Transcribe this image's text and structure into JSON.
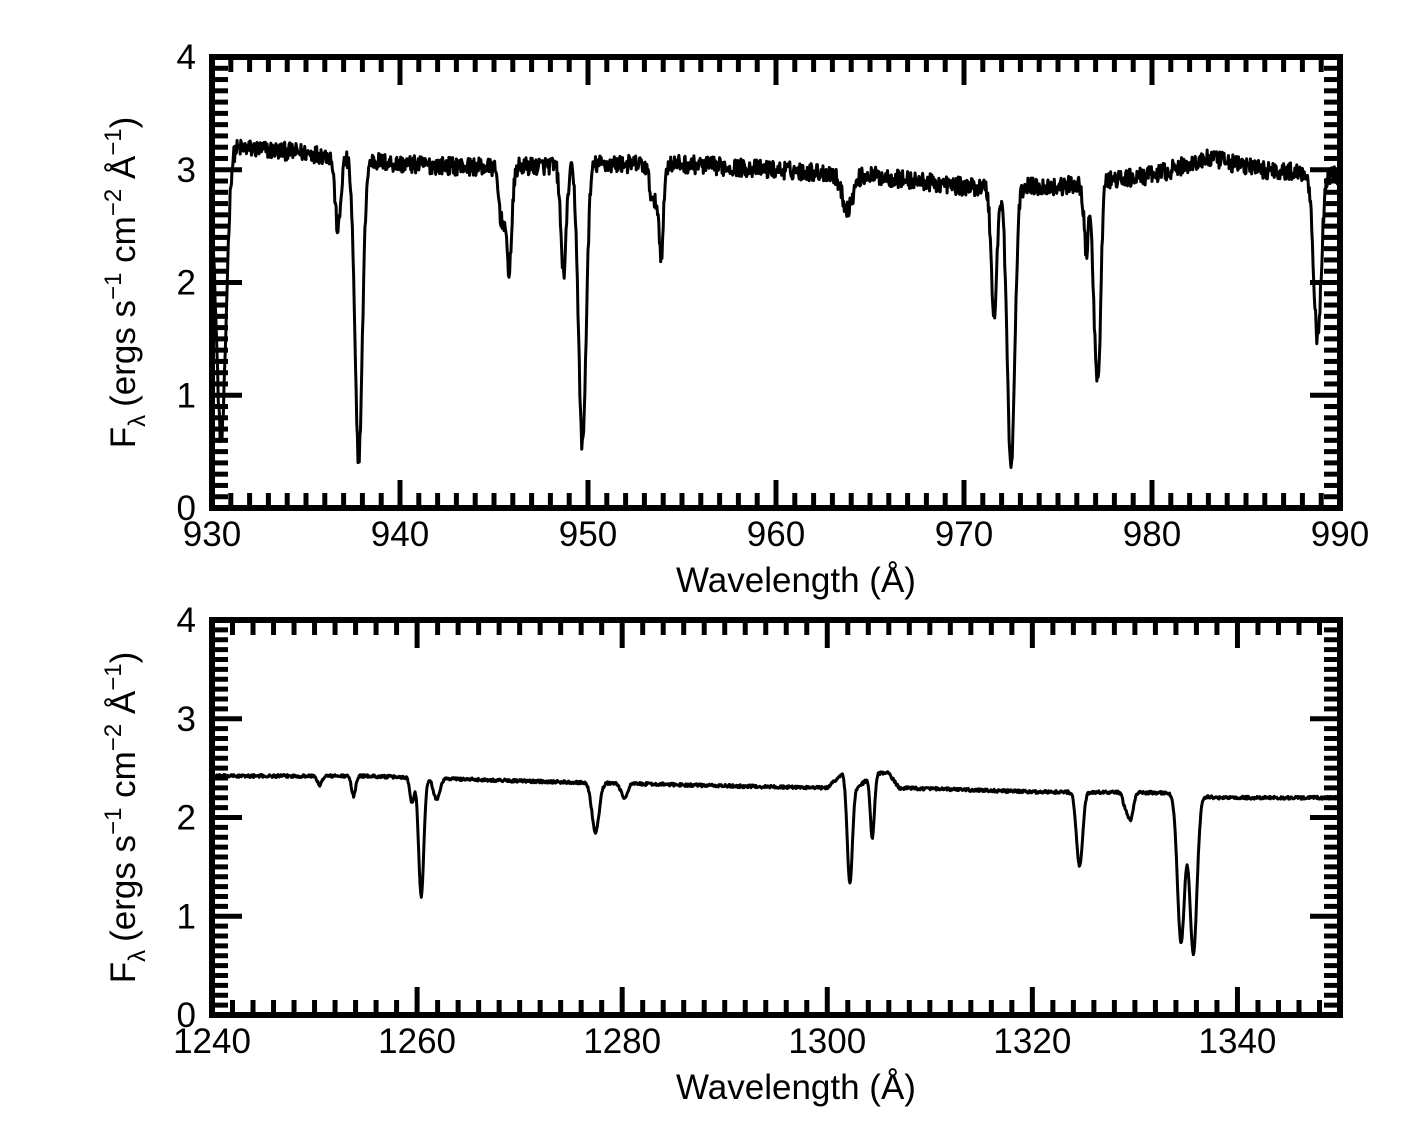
{
  "chart_data": [
    {
      "type": "line",
      "title": "",
      "xlabel": "Wavelength (Å)",
      "ylabel": {
        "prefix": "F",
        "sub": "λ",
        "units": "(ergs s",
        "exp1": "−1",
        "mid": " cm",
        "exp2": "−2",
        "mid2": " Å",
        "exp3": "−1",
        "close": ")"
      },
      "xlim": [
        930,
        990
      ],
      "ylim": [
        0,
        4
      ],
      "xticks": [
        930,
        940,
        950,
        960,
        970,
        980,
        990
      ],
      "yticks": [
        0,
        1,
        2,
        3,
        4
      ],
      "x_minor_step": 1,
      "y_minor_step": 0.1,
      "grid": false,
      "series": [
        {
          "line_color": "#000000",
          "continuum": [
            [
              930.0,
              2.8
            ],
            [
              931.0,
              3.2
            ],
            [
              935,
              3.15
            ],
            [
              940,
              3.05
            ],
            [
              945,
              3.02
            ],
            [
              950,
              3.05
            ],
            [
              955,
              3.05
            ],
            [
              960,
              3.0
            ],
            [
              965,
              2.95
            ],
            [
              970,
              2.85
            ],
            [
              975,
              2.85
            ],
            [
              980,
              2.95
            ],
            [
              983,
              3.1
            ],
            [
              986,
              3.0
            ],
            [
              990,
              2.95
            ]
          ],
          "noise_amplitude": 0.08,
          "absorption_lines": [
            {
              "center": 930.5,
              "depth": 2.4,
              "width": 0.25
            },
            {
              "center": 936.7,
              "depth": 0.65,
              "width": 0.15
            },
            {
              "center": 937.8,
              "depth": 2.65,
              "width": 0.2
            },
            {
              "center": 945.4,
              "depth": 0.45,
              "width": 0.15
            },
            {
              "center": 945.8,
              "depth": 0.9,
              "width": 0.15
            },
            {
              "center": 948.7,
              "depth": 0.95,
              "width": 0.15
            },
            {
              "center": 949.7,
              "depth": 2.5,
              "width": 0.2
            },
            {
              "center": 953.5,
              "depth": 0.35,
              "width": 0.2
            },
            {
              "center": 953.9,
              "depth": 0.75,
              "width": 0.12
            },
            {
              "center": 963.8,
              "depth": 0.3,
              "width": 0.3
            },
            {
              "center": 971.6,
              "depth": 1.15,
              "width": 0.15
            },
            {
              "center": 972.5,
              "depth": 2.5,
              "width": 0.2
            },
            {
              "center": 976.5,
              "depth": 0.6,
              "width": 0.12
            },
            {
              "center": 977.0,
              "depth": 1.3,
              "width": 0.15
            },
            {
              "center": 977.2,
              "depth": 1.0,
              "width": 0.12
            },
            {
              "center": 988.8,
              "depth": 1.45,
              "width": 0.2
            }
          ]
        }
      ]
    },
    {
      "type": "line",
      "title": "",
      "xlabel": "Wavelength (Å)",
      "ylabel": {
        "prefix": "F",
        "sub": "λ",
        "units": "(ergs s",
        "exp1": "−1",
        "mid": " cm",
        "exp2": "−2",
        "mid2": " Å",
        "exp3": "−1",
        "close": ")"
      },
      "xlim": [
        1240,
        1350
      ],
      "ylim": [
        0,
        4
      ],
      "xticks": [
        1240,
        1260,
        1280,
        1300,
        1320,
        1340
      ],
      "yticks": [
        0,
        1,
        2,
        3,
        4
      ],
      "x_minor_step": 2,
      "y_minor_step": 0.1,
      "grid": false,
      "series": [
        {
          "line_color": "#000000",
          "continuum": [
            [
              1240,
              2.42
            ],
            [
              1255,
              2.42
            ],
            [
              1270,
              2.37
            ],
            [
              1290,
              2.32
            ],
            [
              1300,
              2.3
            ],
            [
              1301.5,
              2.45
            ],
            [
              1303,
              2.3
            ],
            [
              1304.5,
              2.45
            ],
            [
              1306,
              2.45
            ],
            [
              1307,
              2.3
            ],
            [
              1320,
              2.26
            ],
            [
              1333,
              2.25
            ],
            [
              1338,
              2.2
            ],
            [
              1350,
              2.2
            ]
          ],
          "noise_amplitude": 0.015,
          "absorption_lines": [
            {
              "center": 1250.5,
              "depth": 0.1,
              "width": 0.2
            },
            {
              "center": 1253.8,
              "depth": 0.2,
              "width": 0.2
            },
            {
              "center": 1259.5,
              "depth": 0.25,
              "width": 0.2
            },
            {
              "center": 1260.4,
              "depth": 1.2,
              "width": 0.25
            },
            {
              "center": 1261.9,
              "depth": 0.22,
              "width": 0.3
            },
            {
              "center": 1277.4,
              "depth": 0.5,
              "width": 0.35
            },
            {
              "center": 1280.2,
              "depth": 0.15,
              "width": 0.3
            },
            {
              "center": 1302.2,
              "depth": 1.05,
              "width": 0.25
            },
            {
              "center": 1304.4,
              "depth": 0.65,
              "width": 0.2
            },
            {
              "center": 1324.6,
              "depth": 0.75,
              "width": 0.3
            },
            {
              "center": 1329.1,
              "depth": 0.15,
              "width": 0.25
            },
            {
              "center": 1329.6,
              "depth": 0.25,
              "width": 0.25
            },
            {
              "center": 1334.5,
              "depth": 1.5,
              "width": 0.35
            },
            {
              "center": 1335.7,
              "depth": 1.6,
              "width": 0.35
            }
          ]
        }
      ]
    }
  ]
}
